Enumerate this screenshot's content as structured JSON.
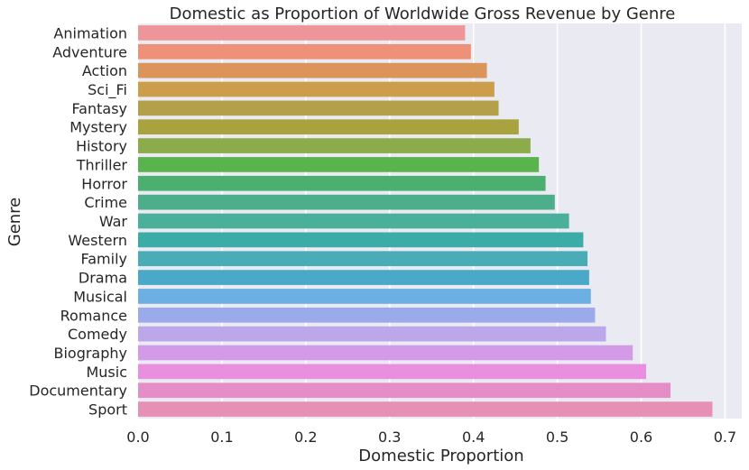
{
  "chart_data": {
    "type": "bar",
    "orientation": "horizontal",
    "title": "Domestic as Proportion of Worldwide Gross Revenue by Genre",
    "xlabel": "Domestic Proportion",
    "ylabel": "Genre",
    "xlim": [
      0.0,
      0.72
    ],
    "xticks": [
      "0.0",
      "0.1",
      "0.2",
      "0.3",
      "0.4",
      "0.5",
      "0.6",
      "0.7"
    ],
    "grid": true,
    "background": "#eaeaf2",
    "categories": [
      "Animation",
      "Adventure",
      "Action",
      "Sci_Fi",
      "Fantasy",
      "Mystery",
      "History",
      "Thriller",
      "Horror",
      "Crime",
      "War",
      "Western",
      "Family",
      "Drama",
      "Musical",
      "Romance",
      "Comedy",
      "Biography",
      "Music",
      "Documentary",
      "Sport"
    ],
    "values": [
      0.39,
      0.397,
      0.416,
      0.425,
      0.43,
      0.454,
      0.468,
      0.478,
      0.486,
      0.497,
      0.514,
      0.531,
      0.536,
      0.538,
      0.54,
      0.545,
      0.558,
      0.59,
      0.606,
      0.635,
      0.685
    ],
    "colors": [
      "#ee959a",
      "#ed9279",
      "#db945a",
      "#cc9e4b",
      "#b4a04b",
      "#a8a23f",
      "#8cab4b",
      "#5ab44e",
      "#4bb06f",
      "#4cae8a",
      "#4aaf9b",
      "#3caca6",
      "#4aacb6",
      "#4aa9c8",
      "#6cafe2",
      "#9aaaea",
      "#bba7ea",
      "#d39ae8",
      "#e98fe0",
      "#e58dc7",
      "#e790b5"
    ]
  }
}
